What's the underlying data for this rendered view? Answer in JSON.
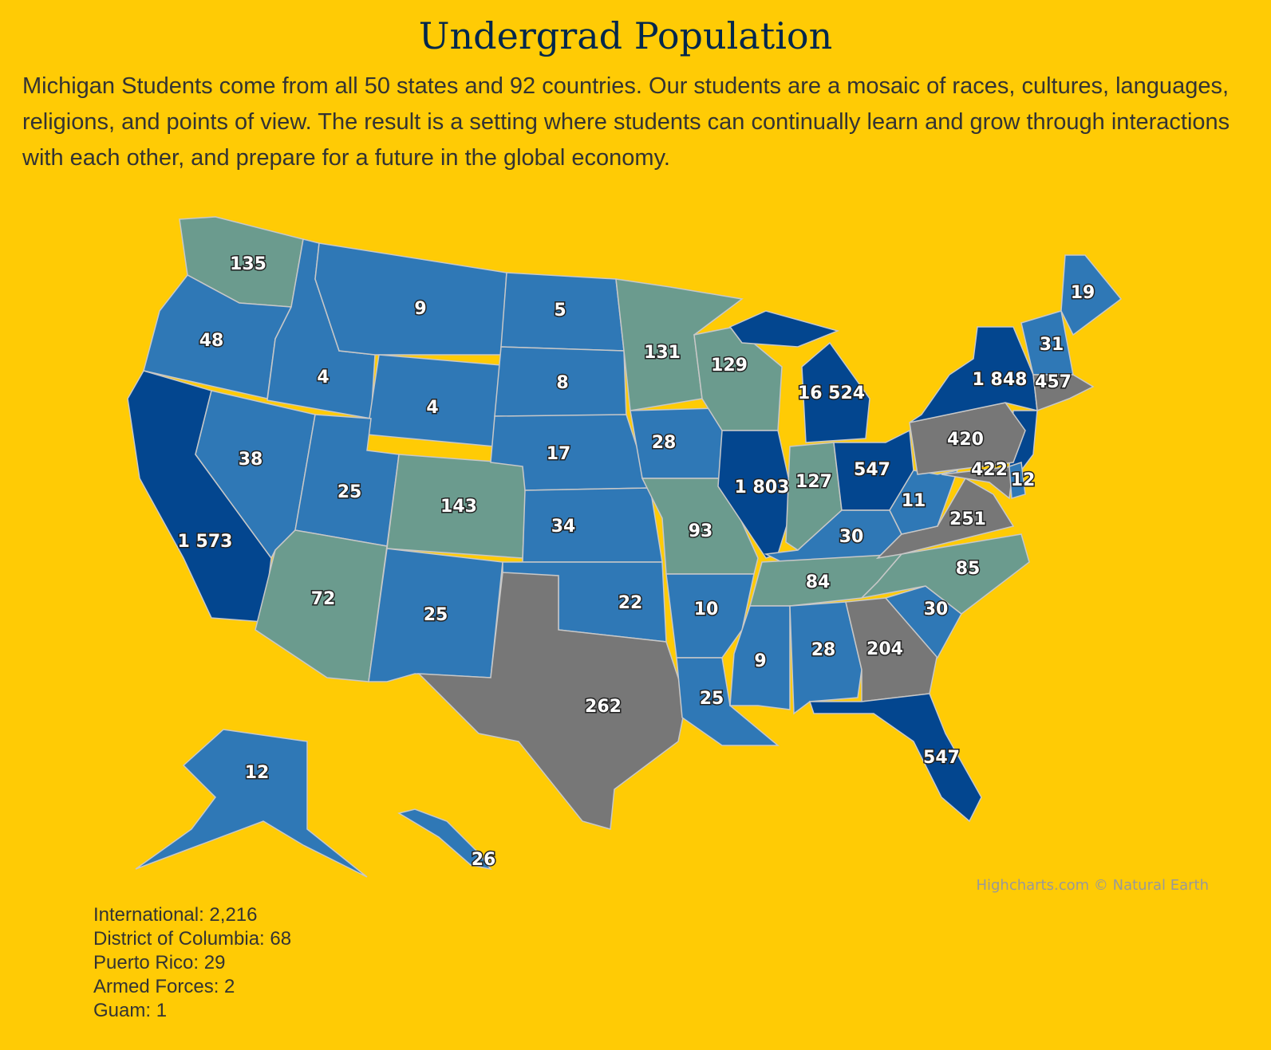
{
  "chart_data": {
    "type": "map",
    "title": "Undergrad Population",
    "subtitle": "Michigan Students come from all 50 states and 92 countries. Our students are a mosaic of races, cultures, languages, religions, and points of view. The result is a setting where students can continually learn and grow through interactions with each other, and prepare for a future in the global economy.",
    "regions": [
      {
        "value": 135,
        "color": "#6b9b8e"
      },
      {
        "value": 48,
        "color": "#2f78b6"
      },
      {
        "value": 1573,
        "label": "1 573",
        "color": "#03468f"
      },
      {
        "value": 4,
        "color": "#2f78b6"
      },
      {
        "value": 9,
        "color": "#2f78b6"
      },
      {
        "value": 4,
        "color": "#2f78b6"
      },
      {
        "value": 38,
        "color": "#2f78b6"
      },
      {
        "value": 25,
        "color": "#2f78b6"
      },
      {
        "value": 72,
        "color": "#6b9b8e"
      },
      {
        "value": 143,
        "color": "#6b9b8e"
      },
      {
        "value": 25,
        "color": "#2f78b6"
      },
      {
        "value": 5,
        "color": "#2f78b6"
      },
      {
        "value": 8,
        "color": "#2f78b6"
      },
      {
        "value": 17,
        "color": "#2f78b6"
      },
      {
        "value": 34,
        "color": "#2f78b6"
      },
      {
        "value": 22,
        "color": "#2f78b6"
      },
      {
        "value": 262,
        "color": "#777777"
      },
      {
        "value": 131,
        "color": "#6b9b8e"
      },
      {
        "value": 28,
        "color": "#2f78b6"
      },
      {
        "value": 93,
        "color": "#6b9b8e"
      },
      {
        "value": 10,
        "color": "#2f78b6"
      },
      {
        "value": 25,
        "color": "#2f78b6"
      },
      {
        "value": 129,
        "color": "#6b9b8e"
      },
      {
        "value": 1803,
        "label": "1 803",
        "color": "#03468f"
      },
      {
        "value": 16524,
        "label": "16 524",
        "color": "#03468f"
      },
      {
        "value": 127,
        "color": "#6b9b8e"
      },
      {
        "value": 547,
        "color": "#03468f"
      },
      {
        "value": 30,
        "color": "#2f78b6"
      },
      {
        "value": 84,
        "color": "#6b9b8e"
      },
      {
        "value": 9,
        "color": "#2f78b6"
      },
      {
        "value": 28,
        "color": "#2f78b6"
      },
      {
        "value": 204,
        "color": "#777777"
      },
      {
        "value": 547,
        "color": "#03468f"
      },
      {
        "value": 30,
        "color": "#2f78b6"
      },
      {
        "value": 85,
        "color": "#6b9b8e"
      },
      {
        "value": 251,
        "color": "#777777"
      },
      {
        "value": 11,
        "color": "#2f78b6"
      },
      {
        "value": 420,
        "color": "#777777"
      },
      {
        "value": 422,
        "color": "#777777"
      },
      {
        "value": 12,
        "color": "#2f78b6"
      },
      {
        "value": 1848,
        "label": "1 848",
        "color": "#03468f"
      },
      {
        "value": 31,
        "color": "#2f78b6"
      },
      {
        "value": 19,
        "color": "#2f78b6"
      },
      {
        "value": 457,
        "color": "#777777"
      },
      {
        "value": 12,
        "color": "#2f78b6"
      },
      {
        "value": 26,
        "color": "#2f78b6"
      }
    ],
    "credits": "Highcharts.com © Natural Earth"
  },
  "notes": [
    "International: 2,216",
    "District of Columbia: 68",
    "Puerto Rico: 29",
    "Armed Forces: 2",
    "Guam: 1"
  ]
}
